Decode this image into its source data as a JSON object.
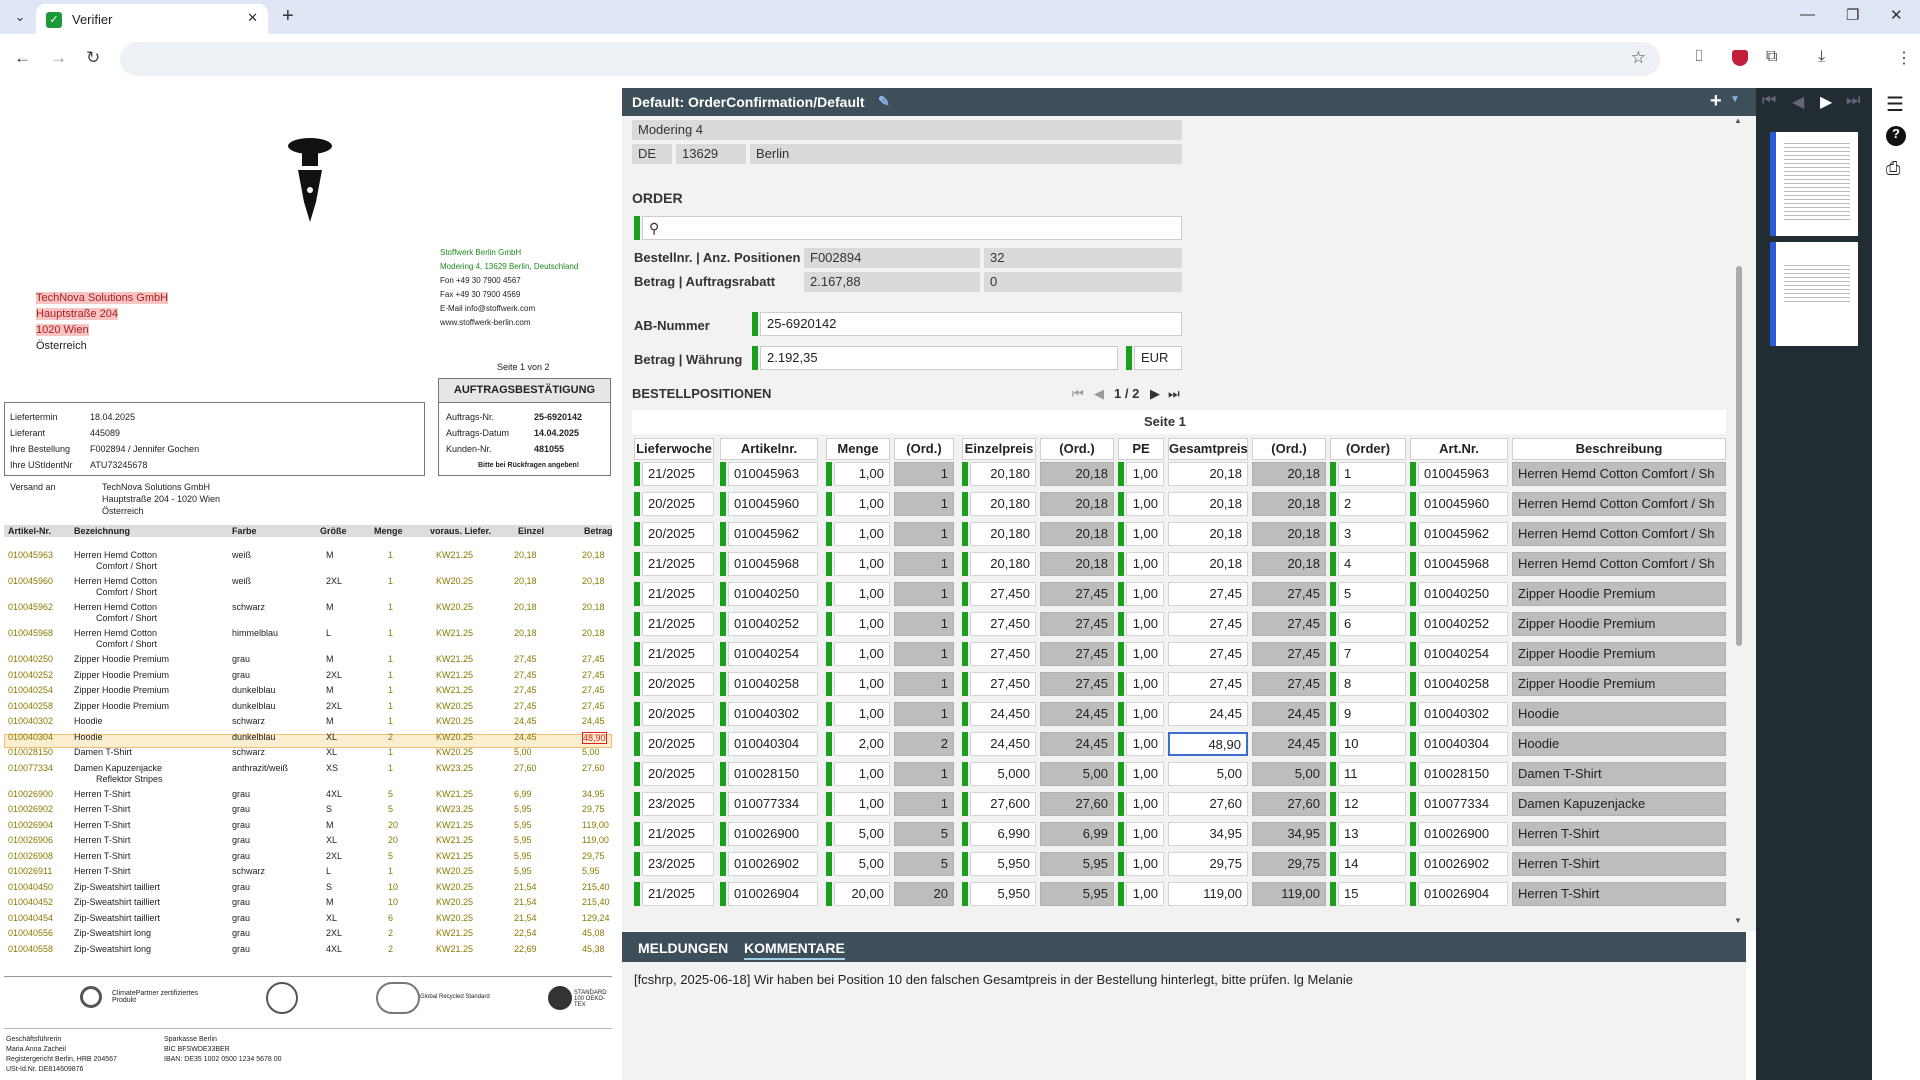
{
  "browser": {
    "tab_title": "Verifier",
    "new_tab": "+",
    "close": "✕",
    "minimize": "—",
    "restore": "❐",
    "window_close": "✕"
  },
  "colors": {
    "header_bg": "#3e4f59",
    "accent_green": "#1aa01a",
    "grey_cell": "#bdbdbd"
  },
  "document": {
    "address_lines": [
      "TechNova Solutions GmbH",
      "Hauptstraße 204",
      "1020 Wien"
    ],
    "address_country": "Österreich",
    "sender": [
      "Stoffwerk Berlin GmbH",
      "Modering 4, 13629 Berlin, Deutschland",
      "Fon +49 30 7900 4567",
      "Fax +49 30 7900 4569",
      "E-Mail info@stoffwerk.com",
      "www.stoffwerk-berlin.com"
    ],
    "page": "Seite 1 von 2",
    "title": "AUFTRAGSBESTÄTIGUNG",
    "left_info": [
      [
        "Liefertermin",
        "18.04.2025"
      ],
      [
        "Lieferant",
        "445089"
      ],
      [
        "Ihre Bestellung",
        "F002894 / Jennifer Gochen"
      ],
      [
        "Ihre UStIdentNr",
        "ATU73245678"
      ]
    ],
    "right_info": [
      [
        "Auftrags-Nr.",
        "25-6920142"
      ],
      [
        "Auftrags-Datum",
        "14.04.2025"
      ],
      [
        "Kunden-Nr.",
        "481055"
      ]
    ],
    "right_note": "Bitte bei Rückfragen angeben!",
    "ship_label": "Versand an",
    "ship": [
      "TechNova Solutions GmbH",
      "Hauptstraße 204 - 1020 Wien",
      "Österreich"
    ],
    "headers": [
      "Artikel-Nr.",
      "Bezeichnung",
      "Farbe",
      "Größe",
      "Menge",
      "voraus. Liefer.",
      "Einzel",
      "Betrag"
    ],
    "rows": [
      [
        "010045963",
        "Herren Hemd Cotton",
        "Comfort / Short",
        "weiß",
        "M",
        "1",
        "KW21.25",
        "20,18",
        "20,18"
      ],
      [
        "010045960",
        "Herren Hemd Cotton",
        "Comfort / Short",
        "weiß",
        "2XL",
        "1",
        "KW20.25",
        "20,18",
        "20,18"
      ],
      [
        "010045962",
        "Herren Hemd Cotton",
        "Comfort / Short",
        "schwarz",
        "M",
        "1",
        "KW20.25",
        "20,18",
        "20,18"
      ],
      [
        "010045968",
        "Herren Hemd Cotton",
        "Comfort / Short",
        "himmelblau",
        "L",
        "1",
        "KW21.25",
        "20,18",
        "20,18"
      ],
      [
        "010040250",
        "Zipper Hoodie Premium",
        "",
        "grau",
        "M",
        "1",
        "KW21.25",
        "27,45",
        "27,45"
      ],
      [
        "010040252",
        "Zipper Hoodie Premium",
        "",
        "grau",
        "2XL",
        "1",
        "KW21.25",
        "27,45",
        "27,45"
      ],
      [
        "010040254",
        "Zipper Hoodie Premium",
        "",
        "dunkelblau",
        "M",
        "1",
        "KW21.25",
        "27,45",
        "27,45"
      ],
      [
        "010040258",
        "Zipper Hoodie Premium",
        "",
        "dunkelblau",
        "2XL",
        "1",
        "KW20.25",
        "27,45",
        "27,45"
      ],
      [
        "010040302",
        "Hoodie",
        "",
        "schwarz",
        "M",
        "1",
        "KW20.25",
        "24,45",
        "24,45"
      ],
      [
        "010040304",
        "Hoodie",
        "",
        "dunkelblau",
        "XL",
        "2",
        "KW20.25",
        "24,45",
        "48,90"
      ],
      [
        "010028150",
        "Damen T-Shirt",
        "",
        "schwarz",
        "XL",
        "1",
        "KW20.25",
        "5,00",
        "5,00"
      ],
      [
        "010077334",
        "Damen Kapuzenjacke",
        "Reflektor Stripes",
        "anthrazit/weiß",
        "XS",
        "1",
        "KW23.25",
        "27,60",
        "27,60"
      ],
      [
        "010026900",
        "Herren T-Shirt",
        "",
        "grau",
        "4XL",
        "5",
        "KW21.25",
        "6,99",
        "34,95"
      ],
      [
        "010026902",
        "Herren T-Shirt",
        "",
        "grau",
        "S",
        "5",
        "KW23.25",
        "5,95",
        "29,75"
      ],
      [
        "010026904",
        "Herren T-Shirt",
        "",
        "grau",
        "M",
        "20",
        "KW21.25",
        "5,95",
        "119,00"
      ],
      [
        "010026906",
        "Herren T-Shirt",
        "",
        "grau",
        "XL",
        "20",
        "KW21.25",
        "5,95",
        "119,00"
      ],
      [
        "010026908",
        "Herren T-Shirt",
        "",
        "grau",
        "2XL",
        "5",
        "KW21.25",
        "5,95",
        "29,75"
      ],
      [
        "010026911",
        "Herren T-Shirt",
        "",
        "schwarz",
        "L",
        "1",
        "KW20.25",
        "5,95",
        "5,95"
      ],
      [
        "010040450",
        "Zip-Sweatshirt tailliert",
        "",
        "grau",
        "S",
        "10",
        "KW20.25",
        "21,54",
        "215,40"
      ],
      [
        "010040452",
        "Zip-Sweatshirt tailliert",
        "",
        "grau",
        "M",
        "10",
        "KW20.25",
        "21,54",
        "215,40"
      ],
      [
        "010040454",
        "Zip-Sweatshirt tailliert",
        "",
        "grau",
        "XL",
        "6",
        "KW20.25",
        "21,54",
        "129,24"
      ],
      [
        "010040556",
        "Zip-Sweatshirt long",
        "",
        "grau",
        "2XL",
        "2",
        "KW21.25",
        "22,54",
        "45,08"
      ],
      [
        "010040558",
        "Zip-Sweatshirt long",
        "",
        "grau",
        "4XL",
        "2",
        "KW21.25",
        "22,69",
        "45,38"
      ]
    ],
    "logos": [
      "ClimatePartner zertifiziertes Produkt",
      "Global Recycled Standard",
      "STANDARD 100 OEKO-TEX"
    ],
    "footer_left": [
      "Geschäftsführerin",
      "Maria Anna Zacheil",
      "Registergericht Berlin, HRB 204567",
      "USt-Id.Nr. DE814609876"
    ],
    "footer_right": [
      "Sparkasse Berlin",
      "BIC BFSWDE33BER",
      "IBAN: DE35 1002 0500 1234 5678 00"
    ]
  },
  "editor": {
    "title": "Default: OrderConfirmation/Default",
    "street": "Modering 4",
    "country": "DE",
    "zip": "13629",
    "city": "Berlin",
    "order_section": "ORDER",
    "bestellnr_label": "Bestellnr. | Anz. Positionen",
    "bestellnr": "F002894",
    "anz_positionen": "32",
    "betrag_label": "Betrag | Auftragsrabatt",
    "betrag": "2.167,88",
    "rabatt": "0",
    "ab_label": "AB-Nummer",
    "ab_value": "25-6920142",
    "waehrung_label": "Betrag | Währung",
    "amount": "2.192,35",
    "currency": "EUR",
    "positions_title": "BESTELLPOSITIONEN",
    "pager": "1 / 2",
    "page_caption": "Seite 1",
    "columns": [
      "Lieferwoche",
      "Artikelnr.",
      "Menge",
      "(Ord.)",
      "Einzelpreis",
      "(Ord.)",
      "PE",
      "Gesamtpreis",
      "(Ord.)",
      "(Order) Pos.",
      "Art.Nr.",
      "Beschreibung"
    ],
    "rows": [
      [
        "21/2025",
        "010045963",
        "1,00",
        "1",
        "20,180",
        "20,18",
        "1,00",
        "20,18",
        "20,18",
        "1",
        "010045963",
        "Herren Hemd Cotton  Comfort / Sh"
      ],
      [
        "20/2025",
        "010045960",
        "1,00",
        "1",
        "20,180",
        "20,18",
        "1,00",
        "20,18",
        "20,18",
        "2",
        "010045960",
        "Herren Hemd Cotton  Comfort / Sh"
      ],
      [
        "20/2025",
        "010045962",
        "1,00",
        "1",
        "20,180",
        "20,18",
        "1,00",
        "20,18",
        "20,18",
        "3",
        "010045962",
        "Herren Hemd Cotton  Comfort / Sh"
      ],
      [
        "21/2025",
        "010045968",
        "1,00",
        "1",
        "20,180",
        "20,18",
        "1,00",
        "20,18",
        "20,18",
        "4",
        "010045968",
        "Herren Hemd Cotton  Comfort / Sh"
      ],
      [
        "21/2025",
        "010040250",
        "1,00",
        "1",
        "27,450",
        "27,45",
        "1,00",
        "27,45",
        "27,45",
        "5",
        "010040250",
        "Zipper Hoodie Premium"
      ],
      [
        "21/2025",
        "010040252",
        "1,00",
        "1",
        "27,450",
        "27,45",
        "1,00",
        "27,45",
        "27,45",
        "6",
        "010040252",
        "Zipper Hoodie Premium"
      ],
      [
        "21/2025",
        "010040254",
        "1,00",
        "1",
        "27,450",
        "27,45",
        "1,00",
        "27,45",
        "27,45",
        "7",
        "010040254",
        "Zipper Hoodie Premium"
      ],
      [
        "20/2025",
        "010040258",
        "1,00",
        "1",
        "27,450",
        "27,45",
        "1,00",
        "27,45",
        "27,45",
        "8",
        "010040258",
        "Zipper Hoodie Premium"
      ],
      [
        "20/2025",
        "010040302",
        "1,00",
        "1",
        "24,450",
        "24,45",
        "1,00",
        "24,45",
        "24,45",
        "9",
        "010040302",
        "Hoodie"
      ],
      [
        "20/2025",
        "010040304",
        "2,00",
        "2",
        "24,450",
        "24,45",
        "1,00",
        "48,90",
        "24,45",
        "10",
        "010040304",
        "Hoodie"
      ],
      [
        "20/2025",
        "010028150",
        "1,00",
        "1",
        "5,000",
        "5,00",
        "1,00",
        "5,00",
        "5,00",
        "11",
        "010028150",
        "Damen T-Shirt"
      ],
      [
        "23/2025",
        "010077334",
        "1,00",
        "1",
        "27,600",
        "27,60",
        "1,00",
        "27,60",
        "27,60",
        "12",
        "010077334",
        "Damen Kapuzenjacke"
      ],
      [
        "21/2025",
        "010026900",
        "5,00",
        "5",
        "6,990",
        "6,99",
        "1,00",
        "34,95",
        "34,95",
        "13",
        "010026900",
        "Herren T-Shirt"
      ],
      [
        "23/2025",
        "010026902",
        "5,00",
        "5",
        "5,950",
        "5,95",
        "1,00",
        "29,75",
        "29,75",
        "14",
        "010026902",
        "Herren T-Shirt"
      ],
      [
        "21/2025",
        "010026904",
        "20,00",
        "20",
        "5,950",
        "5,95",
        "1,00",
        "119,00",
        "119,00",
        "15",
        "010026904",
        "Herren T-Shirt"
      ]
    ]
  },
  "bottom": {
    "tab1": "MELDUNGEN",
    "tab2": "KOMMENTARE",
    "comment": "[fcshrp, 2025-06-18] Wir haben bei Position 10 den falschen Gesamtpreis in der Bestellung hinterlegt, bitte prüfen. lg Melanie"
  }
}
